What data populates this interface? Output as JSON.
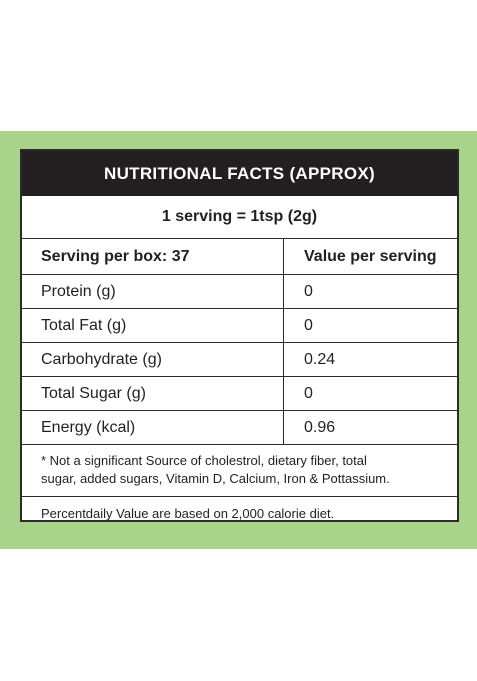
{
  "label": {
    "title": "NUTRITIONAL FACTS (APPROX)",
    "serving": "1 serving = 1tsp (2g)",
    "header": {
      "left": "Serving per box: 37",
      "right": "Value per serving"
    },
    "rows": [
      {
        "name": "Protein (g)",
        "value": "0"
      },
      {
        "name": "Total Fat (g)",
        "value": "0"
      },
      {
        "name": "Carbohydrate (g)",
        "value": "0.24"
      },
      {
        "name": "Total Sugar (g)",
        "value": "0"
      },
      {
        "name": "Energy (kcal)",
        "value": "0.96"
      }
    ],
    "note_line1": "* Not a significant Source of cholestrol, dietary fiber, total",
    "note_line2": "sugar, added sugars, Vitamin D, Calcium, Iron & Pottassium.",
    "footer": "Percentdaily Value are based on 2,000 calorie diet."
  },
  "colors": {
    "band": "#a8d38a",
    "title_bg": "#231f20",
    "border": "#2b2b2b"
  }
}
